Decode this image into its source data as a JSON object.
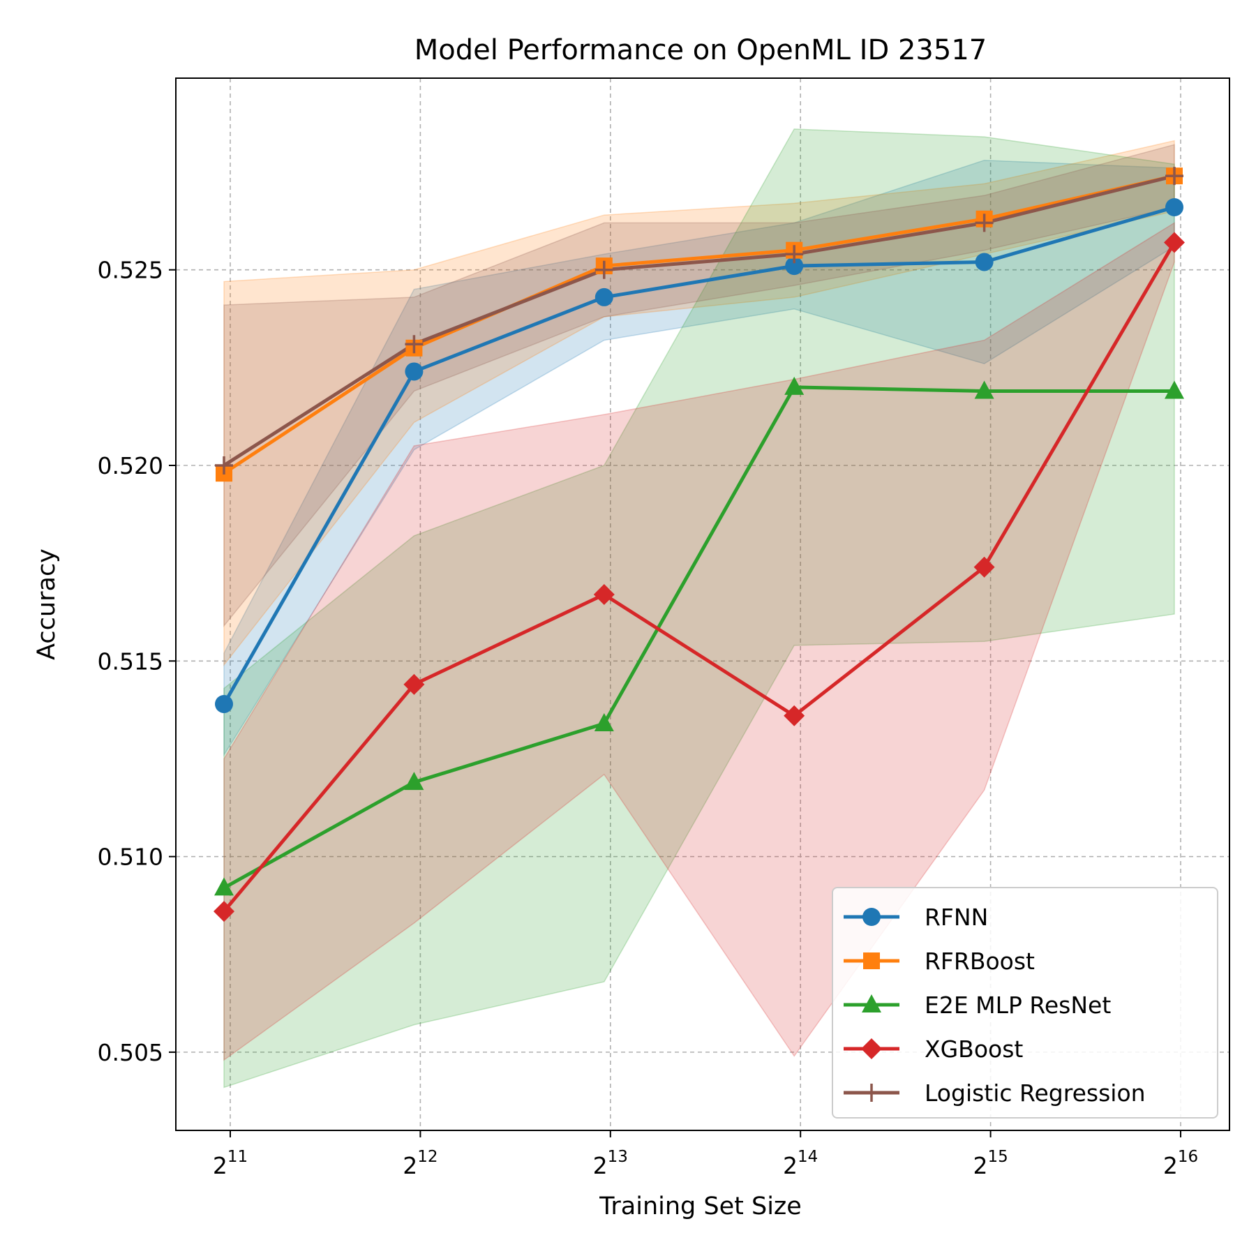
{
  "chart_data": {
    "type": "line",
    "title": "Model Performance on OpenML ID 23517",
    "xlabel": "Training Set Size",
    "ylabel": "Accuracy",
    "x_scale": "log2",
    "x": [
      2048,
      4096,
      8192,
      16384,
      32768,
      65536
    ],
    "x_tick_labels": [
      {
        "base": "2",
        "exp": "11"
      },
      {
        "base": "2",
        "exp": "12"
      },
      {
        "base": "2",
        "exp": "13"
      },
      {
        "base": "2",
        "exp": "14"
      },
      {
        "base": "2",
        "exp": "15"
      },
      {
        "base": "2",
        "exp": "16"
      }
    ],
    "ylim": [
      0.503,
      0.5299
    ],
    "y_ticks": [
      0.505,
      0.51,
      0.515,
      0.52,
      0.525
    ],
    "y_tick_labels": [
      "0.505",
      "0.510",
      "0.515",
      "0.520",
      "0.525"
    ],
    "grid": true,
    "legend_position": "lower-right",
    "series": [
      {
        "name": "RFNN",
        "color": "#1f77b4",
        "marker": "circle",
        "values": [
          0.5139,
          0.5224,
          0.5243,
          0.5251,
          0.5252,
          0.5266
        ],
        "upper": [
          0.5152,
          0.5245,
          0.5254,
          0.5262,
          0.5278,
          0.5276
        ],
        "lower": [
          0.5126,
          0.5204,
          0.5232,
          0.524,
          0.5226,
          0.5256
        ]
      },
      {
        "name": "RFRBoost",
        "color": "#ff7f0e",
        "marker": "square",
        "values": [
          0.5198,
          0.523,
          0.5251,
          0.5255,
          0.5263,
          0.5274
        ],
        "upper": [
          0.5247,
          0.525,
          0.5264,
          0.5267,
          0.5272,
          0.5283
        ],
        "lower": [
          0.5149,
          0.5211,
          0.5238,
          0.5243,
          0.5254,
          0.5265
        ]
      },
      {
        "name": "E2E MLP ResNet",
        "color": "#2ca02c",
        "marker": "triangle",
        "values": [
          0.5092,
          0.5119,
          0.5134,
          0.522,
          0.5219,
          0.5219
        ],
        "upper": [
          0.5143,
          0.5182,
          0.52,
          0.5286,
          0.5284,
          0.5277
        ],
        "lower": [
          0.5041,
          0.5057,
          0.5068,
          0.5154,
          0.5155,
          0.5162
        ]
      },
      {
        "name": "XGBoost",
        "color": "#d62728",
        "marker": "diamond",
        "values": [
          0.5086,
          0.5144,
          0.5167,
          0.5136,
          0.5174,
          0.5257
        ],
        "upper": [
          0.5125,
          0.5205,
          0.5213,
          0.5222,
          0.5232,
          0.5262
        ],
        "lower": [
          0.5048,
          0.5083,
          0.5121,
          0.5049,
          0.5117,
          0.5252
        ]
      },
      {
        "name": "Logistic Regression",
        "color": "#8c564b",
        "marker": "plus",
        "values": [
          0.52,
          0.5231,
          0.525,
          0.5254,
          0.5262,
          0.5274
        ],
        "upper": [
          0.5241,
          0.5243,
          0.5262,
          0.5262,
          0.5269,
          0.5282
        ],
        "lower": [
          0.5159,
          0.5219,
          0.5238,
          0.5246,
          0.5255,
          0.5266
        ]
      }
    ]
  }
}
